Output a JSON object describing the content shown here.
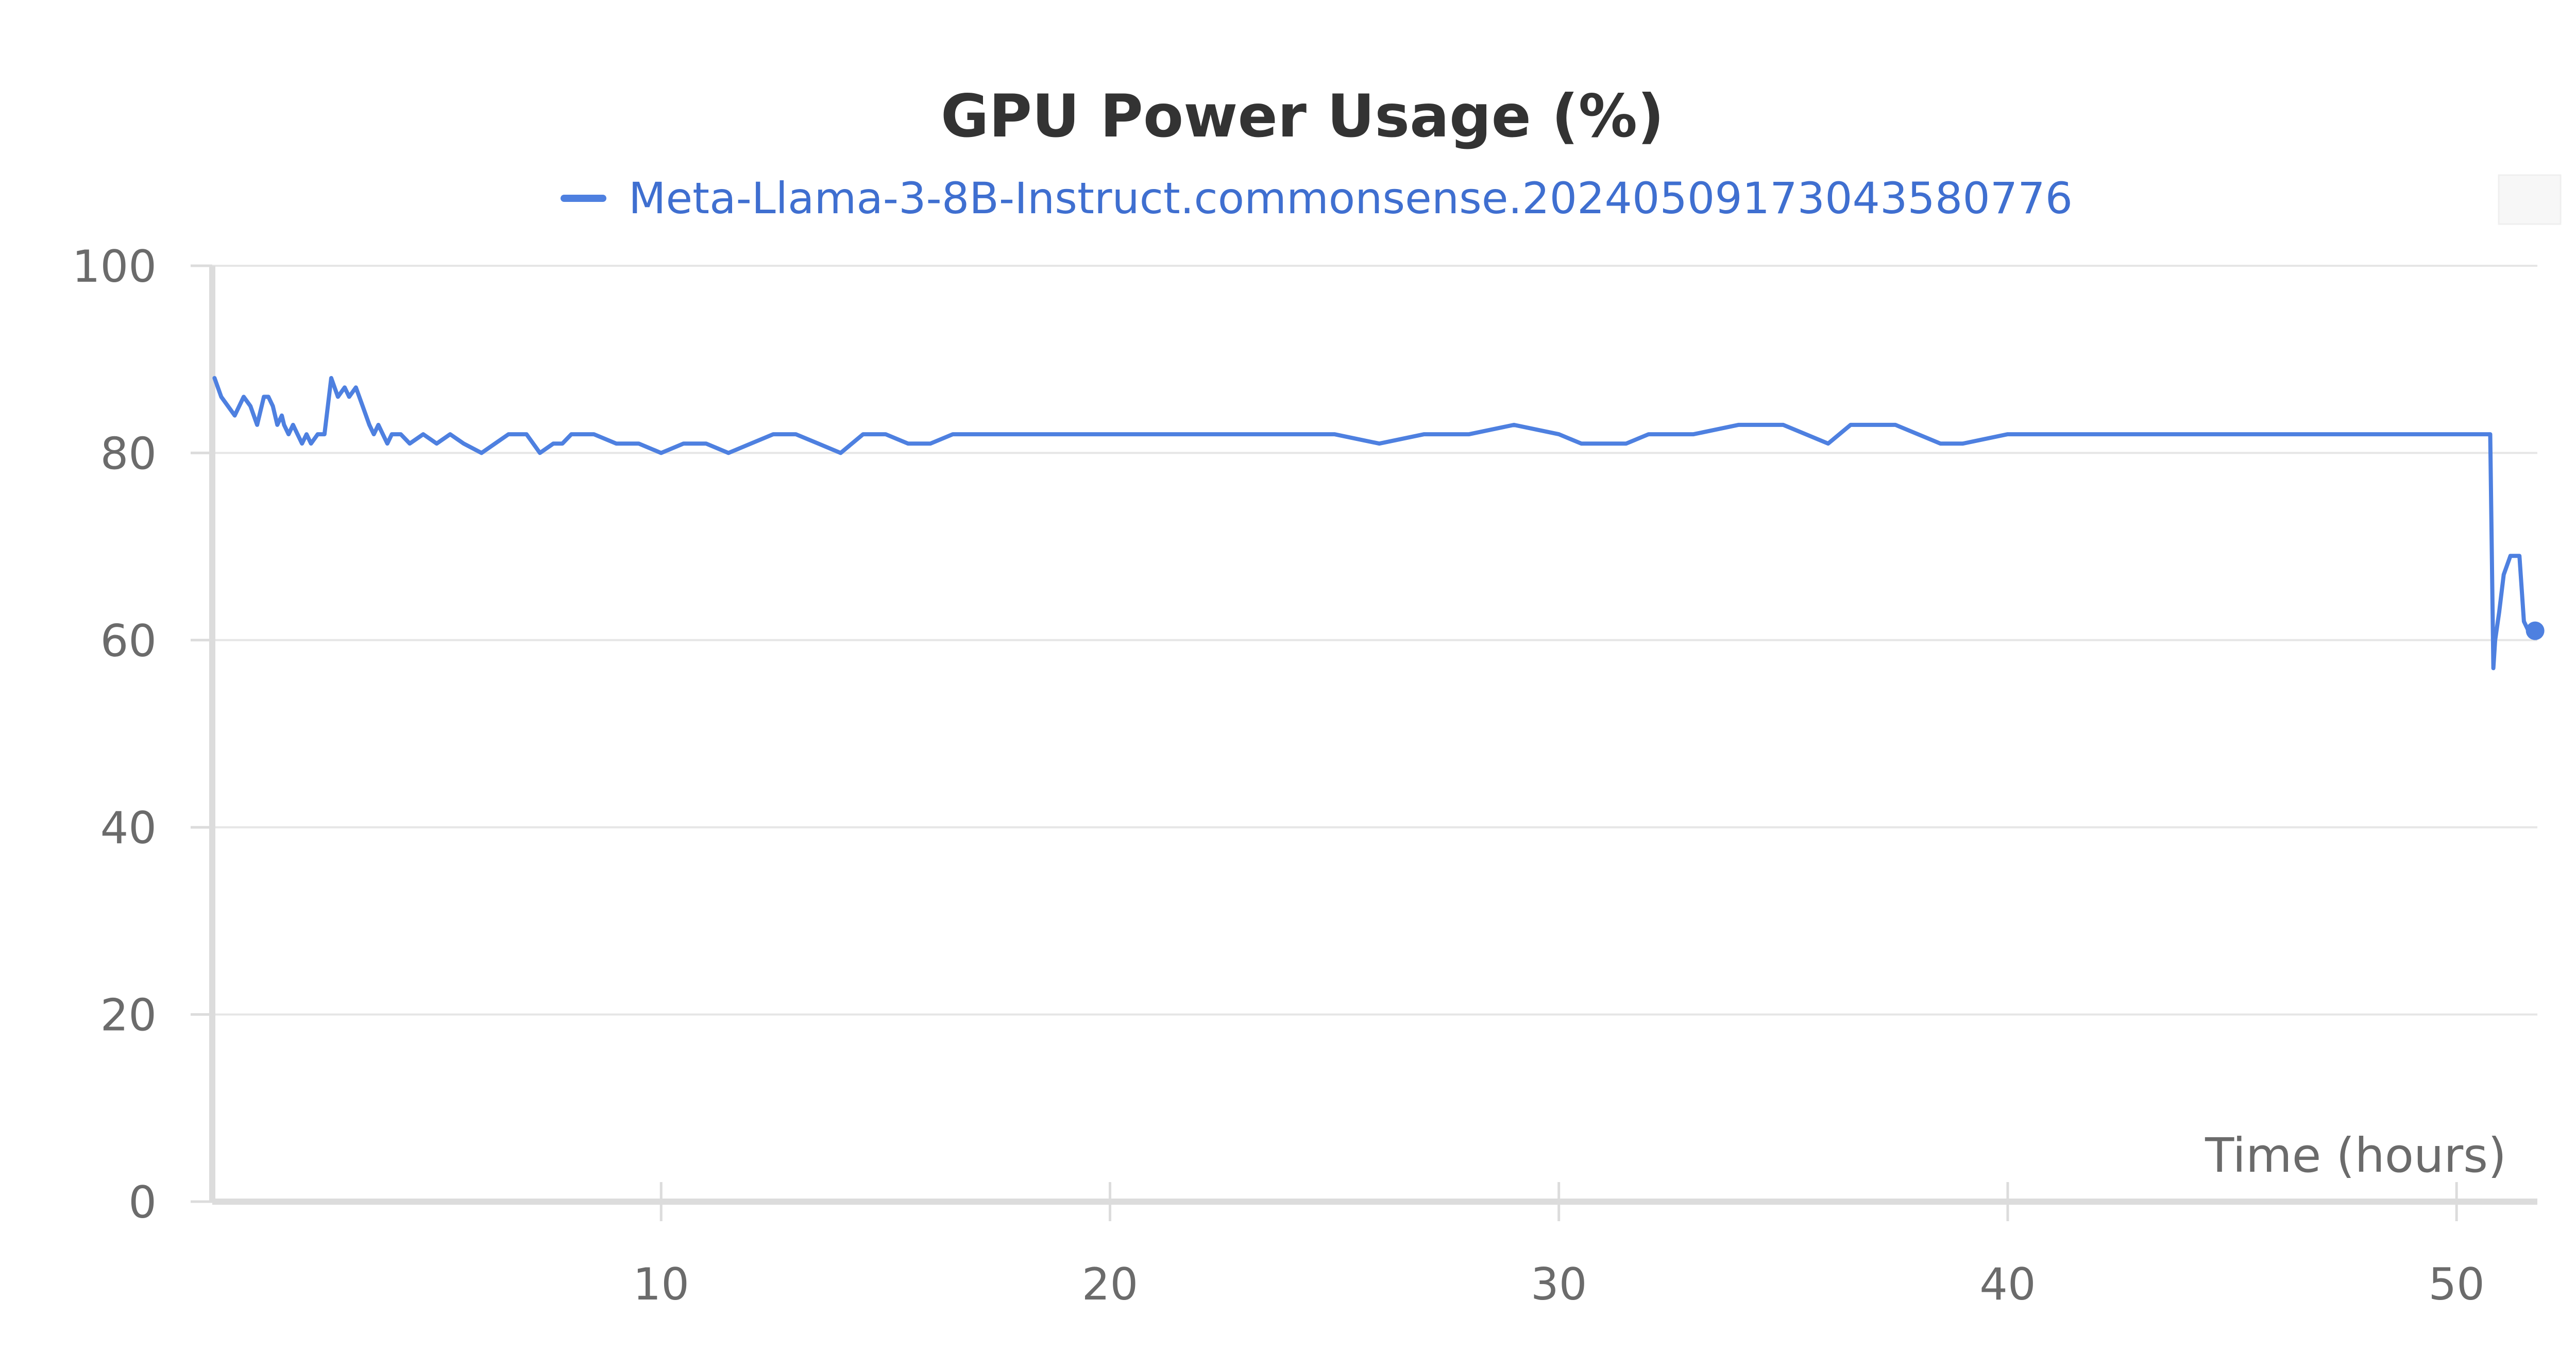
{
  "chart_data": {
    "type": "line",
    "title": "GPU Power Usage (%)",
    "subtitle": "",
    "xlabel": "Time (hours)",
    "ylabel": "",
    "xlim": [
      0,
      51.8
    ],
    "ylim": [
      0,
      100
    ],
    "x_ticks": [
      10,
      20,
      30,
      40,
      50
    ],
    "y_ticks": [
      0,
      20,
      40,
      60,
      80,
      100
    ],
    "grid": "horizontal",
    "legend_position": "top",
    "colors": {
      "series": "#4e80e0",
      "grid": "#e6e6e6",
      "axis": "#dcdcdc"
    },
    "series": [
      {
        "name": "Meta-Llama-3-8B-Instruct.commonsense.20240509173043580776",
        "color": "#4e80e0",
        "x": [
          0.05,
          0.2,
          0.35,
          0.5,
          0.6,
          0.7,
          0.85,
          1.0,
          1.15,
          1.25,
          1.35,
          1.45,
          1.55,
          1.6,
          1.7,
          1.8,
          1.9,
          2.0,
          2.1,
          2.2,
          2.35,
          2.5,
          2.65,
          2.8,
          2.95,
          3.05,
          3.2,
          3.35,
          3.5,
          3.6,
          3.7,
          3.8,
          3.9,
          4.0,
          4.2,
          4.4,
          4.7,
          5.0,
          5.3,
          5.6,
          6.0,
          6.3,
          6.6,
          7.0,
          7.3,
          7.6,
          7.8,
          8.0,
          8.5,
          9.0,
          9.5,
          10.0,
          10.5,
          11.0,
          11.5,
          12.0,
          12.5,
          13.0,
          13.5,
          14.0,
          14.5,
          15.0,
          15.5,
          16.0,
          16.5,
          17.0,
          18.0,
          19.0,
          20.0,
          21.0,
          22.0,
          23.0,
          24.0,
          25.0,
          26.0,
          27.0,
          28.0,
          29.0,
          30.0,
          30.5,
          31.0,
          31.5,
          32.0,
          33.0,
          34.0,
          35.0,
          35.5,
          36.0,
          36.5,
          37.0,
          37.5,
          38.0,
          38.5,
          39.0,
          40.0,
          41.0,
          42.0,
          43.0,
          44.0,
          45.0,
          46.0,
          47.0,
          48.0,
          49.0,
          50.0,
          50.5,
          50.75,
          50.82,
          50.86,
          50.95,
          51.05,
          51.2,
          51.3,
          51.4,
          51.5,
          51.6,
          51.75
        ],
        "values": [
          88,
          86,
          85,
          84,
          85,
          86,
          85,
          83,
          86,
          86,
          85,
          83,
          84,
          83,
          82,
          83,
          82,
          81,
          82,
          81,
          82,
          82,
          88,
          86,
          87,
          86,
          87,
          85,
          83,
          82,
          83,
          82,
          81,
          82,
          82,
          81,
          82,
          81,
          82,
          81,
          80,
          81,
          82,
          82,
          80,
          81,
          81,
          82,
          82,
          81,
          81,
          80,
          81,
          81,
          80,
          81,
          82,
          82,
          81,
          80,
          82,
          82,
          81,
          81,
          82,
          82,
          82,
          82,
          82,
          82,
          82,
          82,
          82,
          82,
          81,
          82,
          82,
          83,
          82,
          81,
          81,
          81,
          82,
          82,
          83,
          83,
          82,
          81,
          83,
          83,
          83,
          82,
          81,
          81,
          82,
          82,
          82,
          82,
          82,
          82,
          82,
          82,
          82,
          82,
          82,
          82,
          82,
          57,
          60,
          63,
          67,
          69,
          69,
          69,
          62,
          61,
          61
        ]
      }
    ]
  }
}
